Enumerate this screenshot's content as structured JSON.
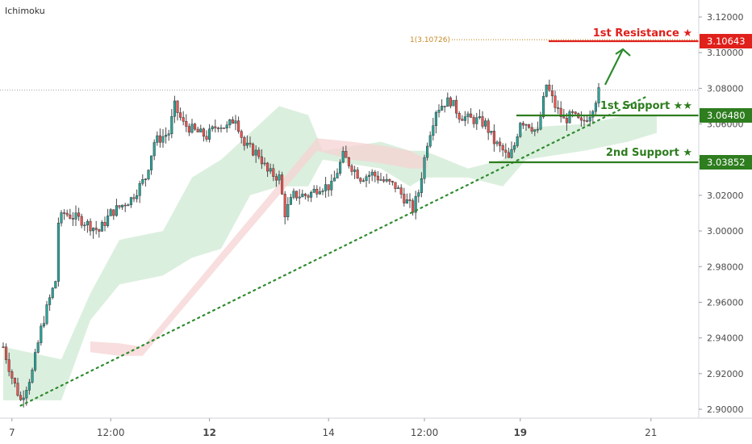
{
  "indicator_label": "Ichimoku",
  "colors": {
    "up": "#26a69a",
    "down": "#ef5350",
    "resistance": "#e0201b",
    "support": "#2e7d1f",
    "trend": "#2e8b2e",
    "fib": "#c58a28",
    "cloud_bull": "#cfe9d3",
    "cloud_bear": "#f5d3d3"
  },
  "chart_data": {
    "type": "candlestick",
    "title": "",
    "ylim": [
      2.895,
      3.125
    ],
    "y_ticks": [
      "3.12000",
      "3.10000",
      "3.08000",
      "3.06000",
      "3.04000",
      "3.02000",
      "3.00000",
      "2.98000",
      "2.96000",
      "2.94000",
      "2.92000",
      "2.90000"
    ],
    "x_ticks": [
      {
        "label": "7",
        "bold": false
      },
      {
        "label": "12:00",
        "bold": false
      },
      {
        "label": "12",
        "bold": true
      },
      {
        "label": "14",
        "bold": false
      },
      {
        "label": "12:00",
        "bold": false
      },
      {
        "label": "19",
        "bold": true
      },
      {
        "label": "21",
        "bold": false
      }
    ],
    "x_tick_index": [
      3,
      37,
      71,
      112,
      145,
      178,
      223
    ],
    "price_anchors": [
      [
        0,
        2.935
      ],
      [
        3,
        2.918
      ],
      [
        6,
        2.905
      ],
      [
        10,
        2.921
      ],
      [
        13,
        2.945
      ],
      [
        16,
        2.962
      ],
      [
        18,
        2.972
      ],
      [
        19,
        3.005
      ],
      [
        21,
        3.01
      ],
      [
        27,
        3.006
      ],
      [
        33,
        3.0
      ],
      [
        37,
        3.01
      ],
      [
        44,
        3.018
      ],
      [
        49,
        3.03
      ],
      [
        52,
        3.05
      ],
      [
        57,
        3.055
      ],
      [
        59,
        3.07
      ],
      [
        62,
        3.06
      ],
      [
        66,
        3.056
      ],
      [
        70,
        3.053
      ],
      [
        74,
        3.06
      ],
      [
        77,
        3.058
      ],
      [
        80,
        3.064
      ],
      [
        83,
        3.048
      ],
      [
        88,
        3.043
      ],
      [
        91,
        3.033
      ],
      [
        95,
        3.03
      ],
      [
        97,
        3.01
      ],
      [
        100,
        3.02
      ],
      [
        105,
        3.02
      ],
      [
        109,
        3.025
      ],
      [
        113,
        3.025
      ],
      [
        117,
        3.042
      ],
      [
        119,
        3.038
      ],
      [
        123,
        3.03
      ],
      [
        127,
        3.032
      ],
      [
        131,
        3.028
      ],
      [
        135,
        3.025
      ],
      [
        141,
        3.012
      ],
      [
        143,
        3.022
      ],
      [
        146,
        3.05
      ],
      [
        149,
        3.068
      ],
      [
        152,
        3.072
      ],
      [
        154,
        3.073
      ],
      [
        157,
        3.065
      ],
      [
        160,
        3.063
      ],
      [
        163,
        3.062
      ],
      [
        166,
        3.06
      ],
      [
        169,
        3.05
      ],
      [
        172,
        3.045
      ],
      [
        174,
        3.04
      ],
      [
        176,
        3.048
      ],
      [
        178,
        3.062
      ],
      [
        181,
        3.06
      ],
      [
        184,
        3.055
      ],
      [
        187,
        3.082
      ],
      [
        190,
        3.07
      ],
      [
        193,
        3.062
      ],
      [
        196,
        3.065
      ],
      [
        199,
        3.06
      ],
      [
        202,
        3.066
      ],
      [
        205,
        3.078
      ]
    ],
    "resistance": {
      "label": "1st Resistance ★",
      "value": 3.10643,
      "value_label": "3.10643"
    },
    "support_1": {
      "label": "1st Support ★★",
      "value": 3.0648,
      "value_label": "3.06480"
    },
    "support_2": {
      "label": "2nd Support ★",
      "value": 3.03852,
      "value_label": "3.03852"
    },
    "fib_label": "1(3.10726)",
    "fib_value": 3.10726,
    "last_price": 3.079,
    "trendline": {
      "from": [
        6,
        2.902
      ],
      "to": [
        221,
        3.075
      ]
    },
    "cloud_bull": [
      [
        0,
        2.905,
        2.935
      ],
      [
        20,
        2.905,
        2.928
      ],
      [
        30,
        2.95,
        2.965
      ],
      [
        40,
        2.97,
        2.995
      ],
      [
        55,
        2.975,
        3.0
      ],
      [
        65,
        2.985,
        3.03
      ],
      [
        75,
        2.99,
        3.04
      ],
      [
        85,
        3.02,
        3.055
      ],
      [
        95,
        3.025,
        3.07
      ],
      [
        105,
        3.025,
        3.065
      ],
      [
        110,
        3.04,
        3.045
      ],
      [
        130,
        3.035,
        3.05
      ],
      [
        140,
        3.025,
        3.045
      ],
      [
        145,
        3.03,
        3.045
      ],
      [
        160,
        3.03,
        3.035
      ],
      [
        172,
        3.025,
        3.04
      ],
      [
        180,
        3.04,
        3.058
      ],
      [
        200,
        3.045,
        3.06
      ],
      [
        215,
        3.05,
        3.065
      ],
      [
        225,
        3.055,
        3.065
      ]
    ],
    "cloud_bear": [
      [
        30,
        2.932,
        2.938
      ],
      [
        40,
        2.93,
        2.937
      ],
      [
        48,
        2.93,
        2.935
      ],
      [
        108,
        3.045,
        3.052
      ],
      [
        120,
        3.04,
        3.05
      ],
      [
        130,
        3.038,
        3.048
      ],
      [
        140,
        3.035,
        3.045
      ],
      [
        146,
        3.035,
        3.04
      ]
    ]
  }
}
